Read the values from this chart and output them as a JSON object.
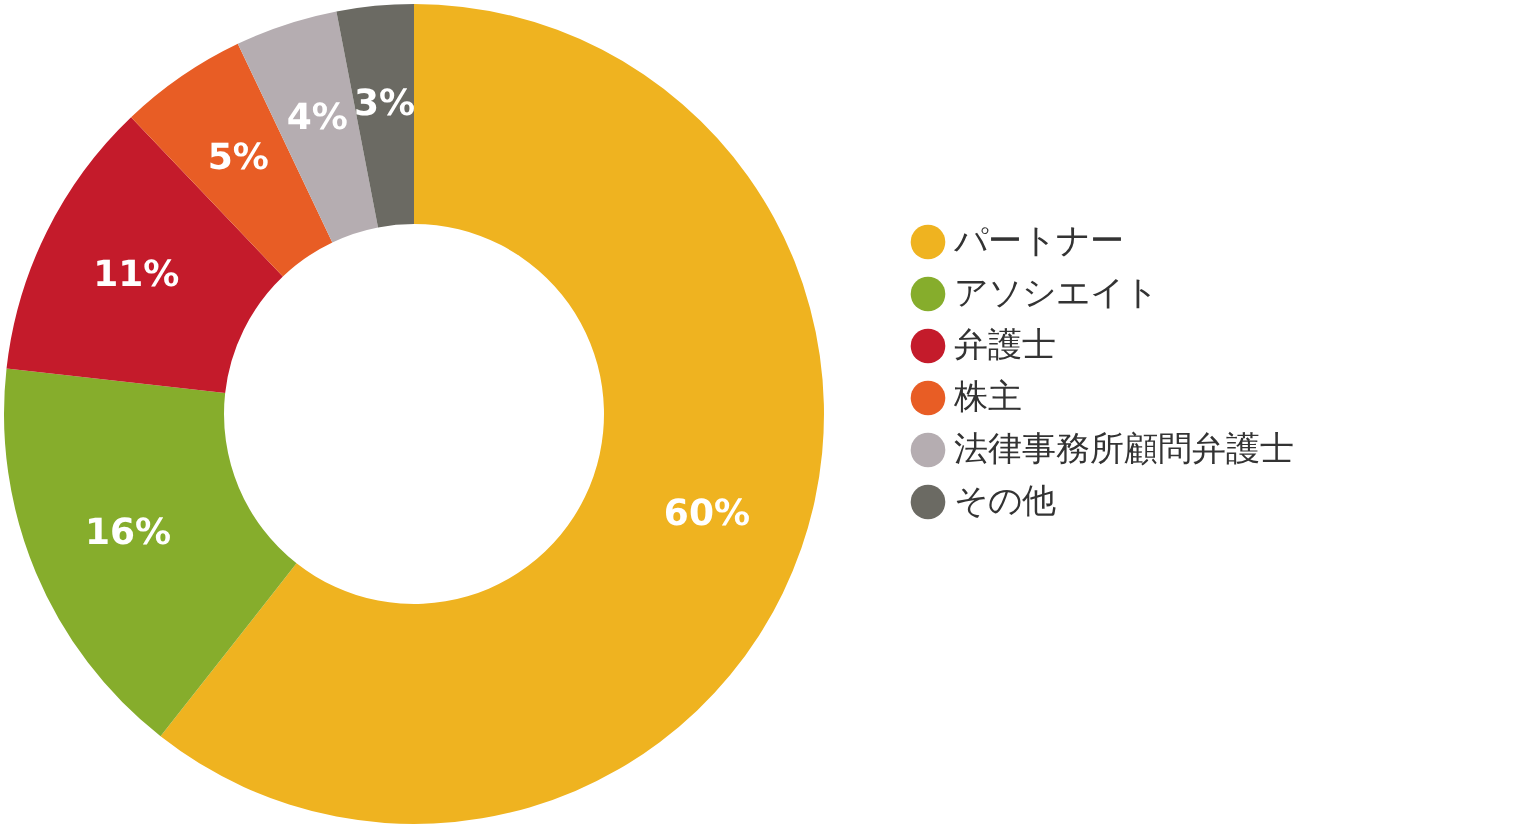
{
  "chart_data": {
    "type": "donut",
    "categories": [
      "パートナー",
      "アソシエイト",
      "弁護士",
      "株主",
      "法律事務所顧問弁護士",
      "その他"
    ],
    "values": [
      60,
      16,
      11,
      5,
      4,
      3
    ],
    "colors": [
      "#efb320",
      "#86ad2c",
      "#c41b2b",
      "#e85d25",
      "#b5adb1",
      "#6b6a63"
    ],
    "value_labels": [
      "60%",
      "16%",
      "11%",
      "5%",
      "4%",
      "3%"
    ],
    "legend": "right"
  }
}
